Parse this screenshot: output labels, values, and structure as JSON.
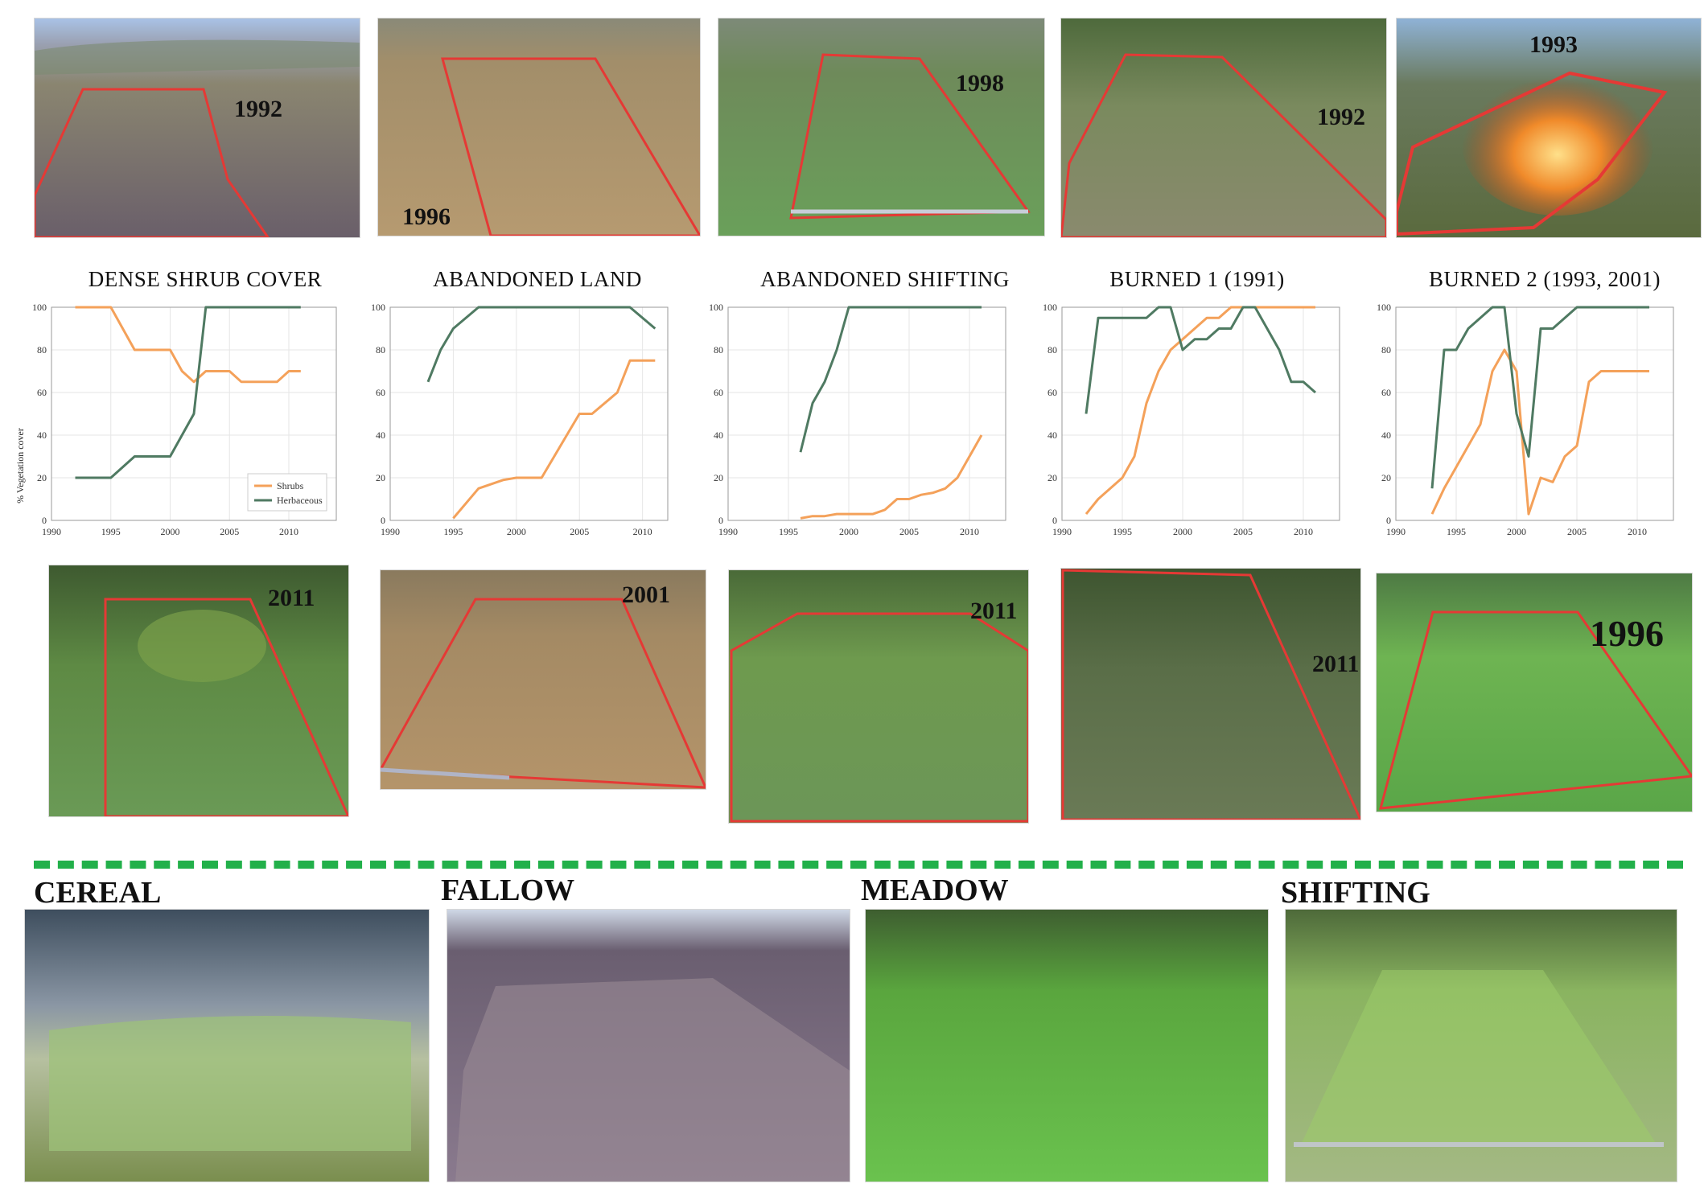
{
  "colors": {
    "shrubs": "#f4a15a",
    "herbaceous": "#4f7a62",
    "outline": "#e53935",
    "divider": "#22b04a",
    "grid": "#e6e6e6"
  },
  "y_axis_label": "% Vegetation cover",
  "legend": [
    "Shrubs",
    "Herbaceous"
  ],
  "top_photos": [
    {
      "year": "1992",
      "scene": "heath-shrub"
    },
    {
      "year": "1996",
      "scene": "dry-grass"
    },
    {
      "year": "1998",
      "scene": "green-grass"
    },
    {
      "year": "1992",
      "scene": "mixed-green"
    },
    {
      "year": "1993",
      "scene": "fire"
    }
  ],
  "mid_photos": [
    {
      "year": "2011",
      "scene": "green-shrub"
    },
    {
      "year": "2001",
      "scene": "dry-grass"
    },
    {
      "year": "2011",
      "scene": "green-shrub"
    },
    {
      "year": "2011",
      "scene": "dark-shrub"
    },
    {
      "year": "1996",
      "scene": "bright-grass"
    }
  ],
  "bottom_sections": [
    {
      "label": "CEREAL",
      "scene": "cereal"
    },
    {
      "label": "FALLOW",
      "scene": "fallow"
    },
    {
      "label": "MEADOW",
      "scene": "meadow"
    },
    {
      "label": "SHIFTING",
      "scene": "shifting"
    }
  ],
  "chart_data": [
    {
      "type": "line",
      "title": "DENSE SHRUB COVER",
      "ylabel": "% Vegetation cover",
      "xlim": [
        1990,
        2014
      ],
      "ylim": [
        0,
        100
      ],
      "xticks": [
        1990,
        1995,
        2000,
        2005,
        2010
      ],
      "yticks": [
        0,
        20,
        40,
        60,
        80,
        100
      ],
      "legend": true,
      "series": [
        {
          "name": "Shrubs",
          "x": [
            1992,
            1995,
            1997,
            2000,
            2001,
            2002,
            2003,
            2005,
            2006,
            2008,
            2009,
            2010,
            2011
          ],
          "values": [
            100,
            100,
            80,
            80,
            70,
            65,
            70,
            70,
            65,
            65,
            65,
            70,
            70
          ]
        },
        {
          "name": "Herbaceous",
          "x": [
            1992,
            1995,
            1997,
            2000,
            2002,
            2003,
            2011
          ],
          "values": [
            20,
            20,
            30,
            30,
            50,
            100,
            100
          ]
        }
      ]
    },
    {
      "type": "line",
      "title": "ABANDONED LAND",
      "xlim": [
        1990,
        2012
      ],
      "ylim": [
        0,
        100
      ],
      "xticks": [
        1990,
        1995,
        2000,
        2005,
        2010
      ],
      "yticks": [
        0,
        20,
        40,
        60,
        80,
        100
      ],
      "series": [
        {
          "name": "Shrubs",
          "x": [
            1995,
            1997,
            1999,
            2000,
            2002,
            2004,
            2005,
            2006,
            2008,
            2009,
            2011
          ],
          "values": [
            1,
            15,
            19,
            20,
            20,
            40,
            50,
            50,
            60,
            75,
            75
          ]
        },
        {
          "name": "Herbaceous",
          "x": [
            1993,
            1994,
            1995,
            1997,
            2009,
            2011
          ],
          "values": [
            65,
            80,
            90,
            100,
            100,
            90
          ]
        }
      ]
    },
    {
      "type": "line",
      "title": "ABANDONED SHIFTING",
      "xlim": [
        1990,
        2013
      ],
      "ylim": [
        0,
        100
      ],
      "xticks": [
        1990,
        1995,
        2000,
        2005,
        2010
      ],
      "yticks": [
        0,
        20,
        40,
        60,
        80,
        100
      ],
      "series": [
        {
          "name": "Shrubs",
          "x": [
            1996,
            1997,
            1998,
            1999,
            2000,
            2002,
            2003,
            2004,
            2005,
            2006,
            2007,
            2008,
            2009,
            2010,
            2011
          ],
          "values": [
            1,
            2,
            2,
            3,
            3,
            3,
            5,
            10,
            10,
            12,
            13,
            15,
            20,
            30,
            40
          ]
        },
        {
          "name": "Herbaceous",
          "x": [
            1996,
            1997,
            1998,
            1999,
            2000,
            2011
          ],
          "values": [
            32,
            55,
            65,
            80,
            100,
            100
          ]
        }
      ]
    },
    {
      "type": "line",
      "title": "BURNED 1 (1991)",
      "xlim": [
        1990,
        2013
      ],
      "ylim": [
        0,
        100
      ],
      "xticks": [
        1990,
        1995,
        2000,
        2005,
        2010
      ],
      "yticks": [
        0,
        20,
        40,
        60,
        80,
        100
      ],
      "series": [
        {
          "name": "Shrubs",
          "x": [
            1992,
            1993,
            1995,
            1996,
            1997,
            1998,
            1999,
            2000,
            2002,
            2003,
            2004,
            2005,
            2006,
            2011
          ],
          "values": [
            3,
            10,
            20,
            30,
            55,
            70,
            80,
            85,
            95,
            95,
            100,
            100,
            100,
            100
          ]
        },
        {
          "name": "Herbaceous",
          "x": [
            1992,
            1993,
            1997,
            1998,
            1999,
            2000,
            2001,
            2002,
            2003,
            2004,
            2005,
            2006,
            2007,
            2008,
            2009,
            2010,
            2011
          ],
          "values": [
            50,
            95,
            95,
            100,
            100,
            80,
            85,
            85,
            90,
            90,
            100,
            100,
            90,
            80,
            65,
            65,
            60
          ]
        }
      ]
    },
    {
      "type": "line",
      "title": "BURNED 2 (1993, 2001)",
      "xlim": [
        1990,
        2013
      ],
      "ylim": [
        0,
        100
      ],
      "xticks": [
        1990,
        1995,
        2000,
        2005,
        2010
      ],
      "yticks": [
        0,
        20,
        40,
        60,
        80,
        100
      ],
      "series": [
        {
          "name": "Shrubs",
          "x": [
            1993,
            1994,
            1996,
            1997,
            1998,
            1999,
            2000,
            2001,
            2002,
            2003,
            2004,
            2005,
            2006,
            2007,
            2011
          ],
          "values": [
            3,
            15,
            35,
            45,
            70,
            80,
            70,
            3,
            20,
            18,
            30,
            35,
            65,
            70,
            70
          ]
        },
        {
          "name": "Herbaceous",
          "x": [
            1993,
            1994,
            1995,
            1996,
            1998,
            1999,
            2000,
            2001,
            2002,
            2003,
            2005,
            2011
          ],
          "values": [
            15,
            80,
            80,
            90,
            100,
            100,
            50,
            30,
            90,
            90,
            100,
            100
          ]
        }
      ]
    }
  ]
}
